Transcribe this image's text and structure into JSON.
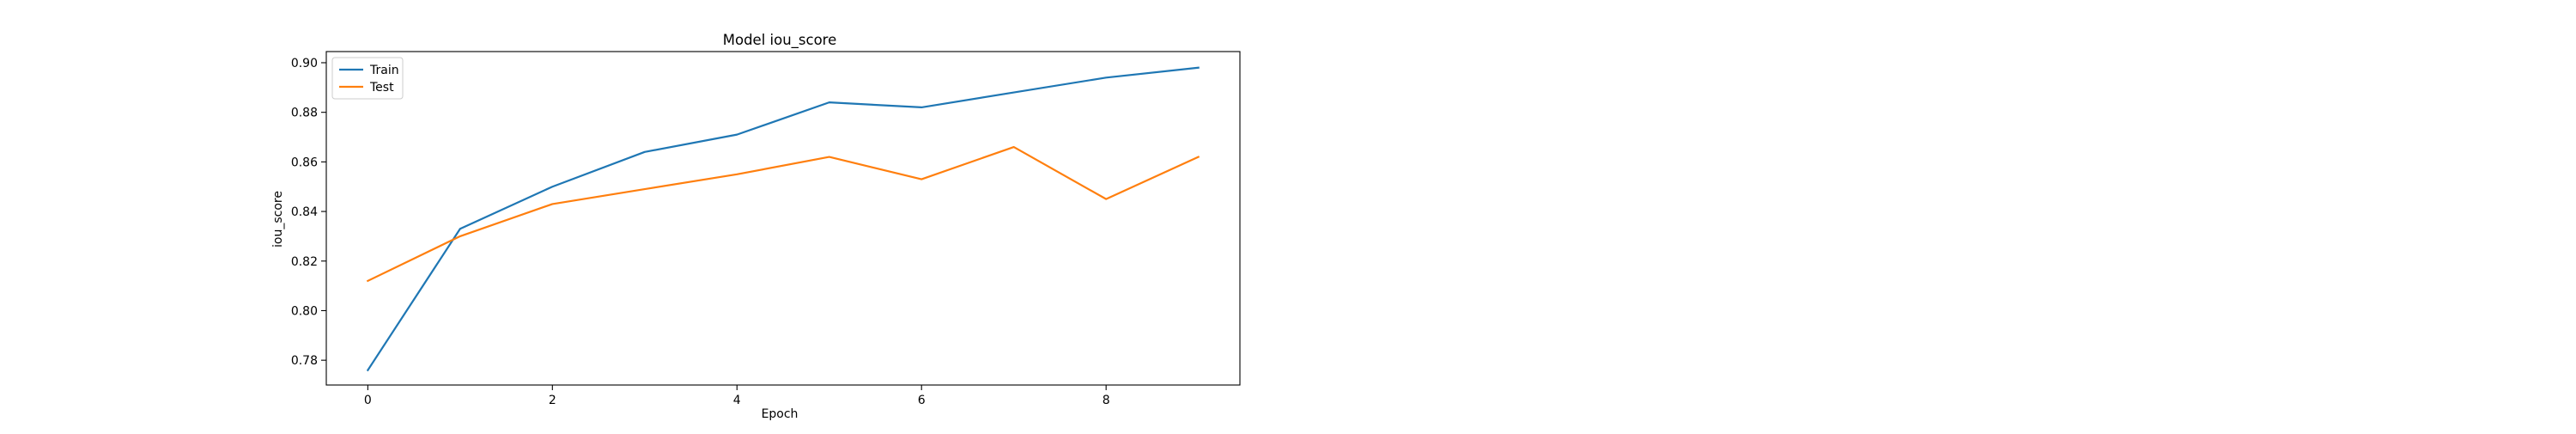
{
  "chart_data": {
    "type": "line",
    "title": "Model iou_score",
    "xlabel": "Epoch",
    "ylabel": "iou_score",
    "x": [
      0,
      1,
      2,
      3,
      4,
      5,
      6,
      7,
      8,
      9
    ],
    "xlim": [
      -0.45,
      9.45
    ],
    "ylim": [
      0.77,
      0.9045
    ],
    "xticks": [
      0,
      2,
      4,
      6,
      8
    ],
    "yticks": [
      0.78,
      0.8,
      0.82,
      0.84,
      0.86,
      0.88,
      0.9
    ],
    "grid": false,
    "legend_position": "top-left",
    "series": [
      {
        "name": "Train",
        "color": "#1f77b4",
        "values": [
          0.776,
          0.833,
          0.85,
          0.864,
          0.871,
          0.884,
          0.882,
          0.888,
          0.894,
          0.898
        ]
      },
      {
        "name": "Test",
        "color": "#ff7f0e",
        "values": [
          0.812,
          0.83,
          0.843,
          0.849,
          0.855,
          0.862,
          0.853,
          0.866,
          0.845,
          0.862
        ]
      }
    ]
  }
}
